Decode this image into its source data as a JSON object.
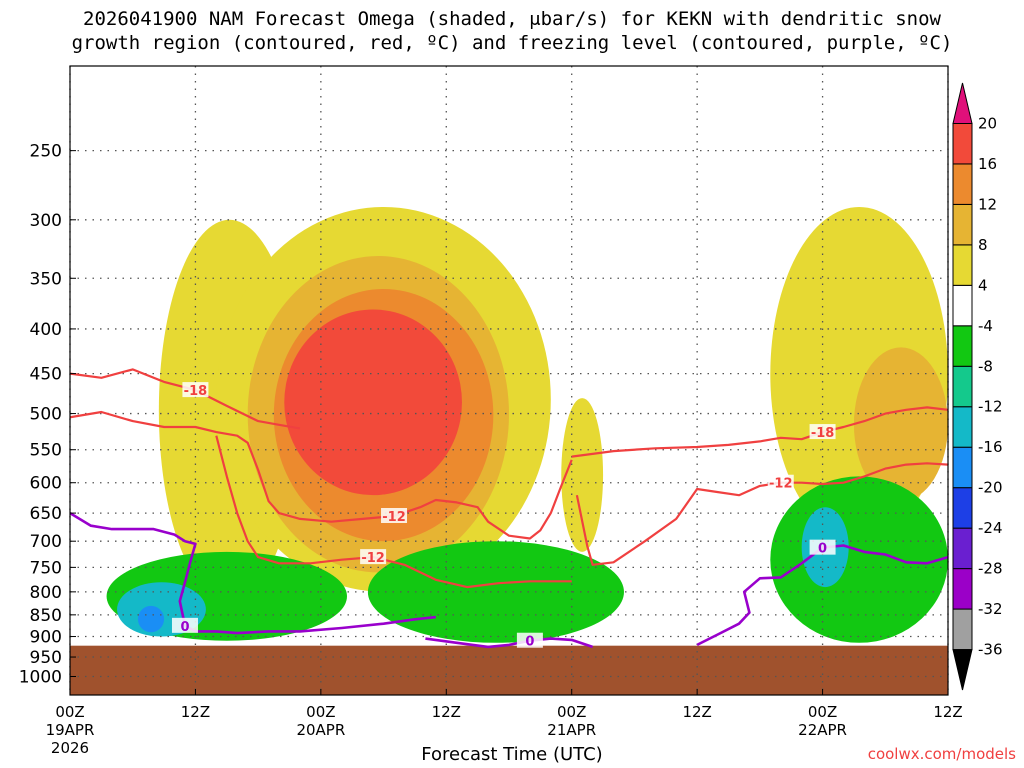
{
  "title": {
    "line1": "2026041900 NAM Forecast Omega (shaded, μbar/s) for KEKN with dendritic snow",
    "line2": "growth region (contoured, red, ºC) and freezing level (contoured, purple, ºC)"
  },
  "credit": "coolwx.com/models",
  "colors": {
    "ground": "#a0522d",
    "dgz_line": "#f04040",
    "freezing_line": "#9900cc",
    "grid": "#555555"
  },
  "chart_data": {
    "type": "heatmap",
    "title": "2026041900 NAM Forecast Omega (shaded, μbar/s) for KEKN with dendritic snow growth region (contoured, red, ºC) and freezing level (contoured, purple, ºC)",
    "xlabel": "Forecast Time (UTC)",
    "ylabel": "",
    "xlim_hours": [
      0,
      84
    ],
    "ylim_hpa": [
      1050,
      200
    ],
    "y_ticks": [
      "250",
      "300",
      "350",
      "400",
      "450",
      "500",
      "550",
      "600",
      "650",
      "700",
      "750",
      "800",
      "850",
      "900",
      "950",
      "1000"
    ],
    "x_ticks": [
      {
        "hour": 0,
        "label": "00Z",
        "sub1": "19APR",
        "sub2": "2026"
      },
      {
        "hour": 12,
        "label": "12Z",
        "sub1": "",
        "sub2": ""
      },
      {
        "hour": 24,
        "label": "00Z",
        "sub1": "20APR",
        "sub2": ""
      },
      {
        "hour": 36,
        "label": "12Z",
        "sub1": "",
        "sub2": ""
      },
      {
        "hour": 48,
        "label": "00Z",
        "sub1": "21APR",
        "sub2": ""
      },
      {
        "hour": 60,
        "label": "12Z",
        "sub1": "",
        "sub2": ""
      },
      {
        "hour": 72,
        "label": "00Z",
        "sub1": "22APR",
        "sub2": ""
      },
      {
        "hour": 84,
        "label": "12Z",
        "sub1": "",
        "sub2": ""
      }
    ],
    "ground_pressure_hpa": 922,
    "colorbar": {
      "levels": [
        "-36",
        "-32",
        "-28",
        "-24",
        "-20",
        "-16",
        "-12",
        "-8",
        "-4",
        "4",
        "8",
        "12",
        "16",
        "20"
      ],
      "colors": [
        "#000000",
        "#a0a0a0",
        "#9b00c8",
        "#6a1fd0",
        "#1d3fe6",
        "#1a8ef5",
        "#14b9c8",
        "#14c98c",
        "#12c812",
        "#ffffff",
        "#e6d933",
        "#e6b433",
        "#ec8a2e",
        "#f24a3a",
        "#e0107a"
      ]
    },
    "shaded_regions": [
      {
        "level": "4 to 8",
        "hour_start": 8.5,
        "hour_end": 22,
        "p_top": 300,
        "p_bottom": 820
      },
      {
        "level": "4 to 8",
        "hour_start": 14,
        "hour_end": 46,
        "p_top": 290,
        "p_bottom": 800
      },
      {
        "level": "8 to 12",
        "hour_start": 17,
        "hour_end": 42,
        "p_top": 330,
        "p_bottom": 760
      },
      {
        "level": "12 to 16",
        "hour_start": 19.5,
        "hour_end": 40.5,
        "p_top": 360,
        "p_bottom": 700
      },
      {
        "level": ">16",
        "hour_start": 20.5,
        "hour_end": 37.5,
        "p_top": 380,
        "p_bottom": 620
      },
      {
        "level": "4 to 8",
        "hour_start": 47,
        "hour_end": 51,
        "p_top": 480,
        "p_bottom": 720
      },
      {
        "level": "4 to 8",
        "hour_start": 67,
        "hour_end": 84,
        "p_top": 290,
        "p_bottom": 700
      },
      {
        "level": "8 to 12",
        "hour_start": 75,
        "hour_end": 84,
        "p_top": 420,
        "p_bottom": 630
      },
      {
        "level": "-8 to -4",
        "hour_start": 3.5,
        "hour_end": 26.5,
        "p_top": 720,
        "p_bottom": 910
      },
      {
        "level": "-12 to -8",
        "hour_start": 4.5,
        "hour_end": 13,
        "p_top": 780,
        "p_bottom": 900
      },
      {
        "level": "-16 to -12",
        "hour_start": 6.5,
        "hour_end": 9,
        "p_top": 830,
        "p_bottom": 890
      },
      {
        "level": "-8 to -4",
        "hour_start": 28.5,
        "hour_end": 53,
        "p_top": 700,
        "p_bottom": 915
      },
      {
        "level": "-8 to -4",
        "hour_start": 67,
        "hour_end": 84,
        "p_top": 590,
        "p_bottom": 915
      },
      {
        "level": "-12 to -8",
        "hour_start": 70,
        "hour_end": 74.5,
        "p_top": 640,
        "p_bottom": 790
      }
    ],
    "series": [
      {
        "name": "DGZ -18 upper",
        "color": "#f04040",
        "label": "-18",
        "x": [
          0,
          3,
          6,
          9,
          12,
          15,
          18,
          20,
          22
        ],
        "y": [
          450,
          455,
          445,
          460,
          470,
          490,
          510,
          515,
          520
        ]
      },
      {
        "name": "DGZ -12 upper",
        "color": "#f04040",
        "label": "-12",
        "x": [
          0,
          3,
          6,
          9,
          12,
          14,
          16,
          17,
          18,
          19,
          20,
          22,
          25,
          28,
          31,
          33.5,
          35,
          37,
          39,
          40,
          42,
          44,
          45,
          46,
          47,
          48
        ],
        "y": [
          505,
          498,
          510,
          518,
          518,
          525,
          530,
          540,
          580,
          630,
          650,
          660,
          665,
          660,
          655,
          640,
          628,
          632,
          640,
          665,
          690,
          695,
          680,
          650,
          605,
          565
        ]
      },
      {
        "name": "DGZ -12 lower",
        "color": "#f04040",
        "label": "-12",
        "x": [
          14,
          15,
          16,
          17,
          18,
          20,
          23,
          26,
          29,
          32,
          35,
          38,
          41,
          44,
          47,
          48
        ],
        "y": [
          530,
          590,
          650,
          700,
          730,
          742,
          742,
          735,
          730,
          745,
          775,
          790,
          782,
          778,
          778,
          778
        ]
      },
      {
        "name": "DGZ -18 main",
        "color": "#f04040",
        "label": "-18",
        "x": [
          48,
          52,
          56,
          60,
          63,
          66,
          68,
          70,
          72,
          74,
          76,
          78,
          80,
          82,
          84
        ],
        "y": [
          560,
          552,
          548,
          546,
          543,
          538,
          533,
          535,
          525,
          518,
          510,
          500,
          495,
          492,
          495
        ]
      },
      {
        "name": "DGZ -12 right",
        "color": "#f04040",
        "label": "-12",
        "x": [
          48.5,
          49.5,
          50,
          52,
          55,
          58,
          60,
          62,
          64,
          66,
          68,
          70,
          72,
          74,
          76,
          78,
          80,
          82,
          84
        ],
        "y": [
          620,
          710,
          745,
          740,
          700,
          660,
          610,
          615,
          620,
          605,
          600,
          600,
          602,
          600,
          590,
          578,
          572,
          570,
          572
        ]
      },
      {
        "name": "Freezing level 0C left",
        "color": "#9900cc",
        "label": "0",
        "x": [
          0,
          2,
          4,
          6,
          8,
          10,
          11,
          12,
          11.5,
          11,
          10.5,
          11,
          12,
          14,
          16,
          19,
          22,
          26,
          30,
          33,
          35
        ],
        "y": [
          650,
          672,
          678,
          678,
          678,
          688,
          700,
          705,
          740,
          780,
          820,
          875,
          888,
          888,
          892,
          888,
          888,
          880,
          870,
          860,
          855
        ]
      },
      {
        "name": "Freezing level 0C middle",
        "color": "#9900cc",
        "label": "0",
        "x": [
          34,
          37,
          40,
          42,
          44,
          46,
          48,
          50
        ],
        "y": [
          905,
          915,
          925,
          920,
          910,
          905,
          908,
          925
        ]
      },
      {
        "name": "Freezing level 0C right",
        "color": "#9900cc",
        "label": "0",
        "x": [
          60,
          62,
          64,
          65,
          64.5,
          66,
          68,
          70,
          72,
          74,
          76,
          78,
          80,
          82,
          84
        ],
        "y": [
          920,
          895,
          870,
          845,
          800,
          772,
          770,
          742,
          712,
          708,
          720,
          725,
          740,
          742,
          730
        ]
      }
    ]
  }
}
